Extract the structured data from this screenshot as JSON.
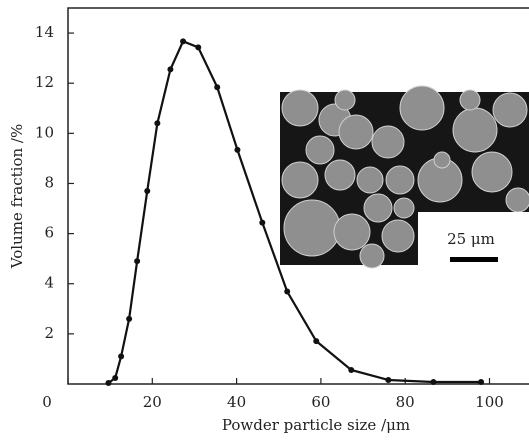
{
  "chart_data": {
    "type": "line",
    "x_label": "Powder particle size /μm",
    "y_label": "Volume fraction /%",
    "inset_scale_label": "25 μm",
    "x": [
      9.6,
      11.2,
      12.6,
      14.5,
      16.4,
      18.8,
      21.2,
      24.3,
      27.3,
      30.9,
      35.4,
      40.2,
      46.1,
      52.0,
      58.9,
      67.2,
      76.0,
      86.7,
      98.0
    ],
    "series": [
      {
        "color": "#111111",
        "values": [
          0.04,
          0.24,
          1.1,
          2.6,
          4.9,
          7.7,
          10.4,
          12.55,
          13.67,
          13.43,
          11.84,
          9.34,
          6.44,
          3.69,
          1.71,
          0.56,
          0.16,
          0.08,
          0.08
        ]
      }
    ],
    "xlim": [
      0,
      107
    ],
    "ylim": [
      0,
      15
    ],
    "xticks": [
      0,
      20,
      40,
      60,
      80,
      100
    ],
    "yticks": [
      2,
      4,
      6,
      8,
      10,
      12,
      14
    ]
  }
}
